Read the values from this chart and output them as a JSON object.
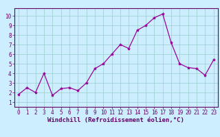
{
  "x": [
    0,
    1,
    2,
    3,
    4,
    5,
    6,
    7,
    8,
    9,
    10,
    11,
    12,
    13,
    14,
    15,
    16,
    17,
    18,
    19,
    20,
    21,
    22,
    23
  ],
  "y": [
    1.8,
    2.5,
    2.0,
    4.0,
    1.7,
    2.4,
    2.5,
    2.2,
    3.0,
    4.5,
    5.0,
    6.0,
    7.0,
    6.6,
    8.5,
    9.0,
    9.8,
    10.2,
    7.2,
    5.0,
    4.6,
    4.5,
    3.8,
    5.4
  ],
  "line_color": "#990099",
  "marker": "*",
  "marker_size": 3,
  "background_color": "#cceeff",
  "grid_color": "#99cccc",
  "xlabel": "Windchill (Refroidissement éolien,°C)",
  "xlim": [
    -0.5,
    23.5
  ],
  "ylim": [
    0.5,
    10.8
  ],
  "yticks": [
    1,
    2,
    3,
    4,
    5,
    6,
    7,
    8,
    9,
    10
  ],
  "xticks": [
    0,
    1,
    2,
    3,
    4,
    5,
    6,
    7,
    8,
    9,
    10,
    11,
    12,
    13,
    14,
    15,
    16,
    17,
    18,
    19,
    20,
    21,
    22,
    23
  ],
  "tick_color": "#660066",
  "label_color": "#660066",
  "spine_color": "#660066",
  "axis_bg": "#cceeff",
  "tick_fontsize": 5.5,
  "xlabel_fontsize": 6.5
}
